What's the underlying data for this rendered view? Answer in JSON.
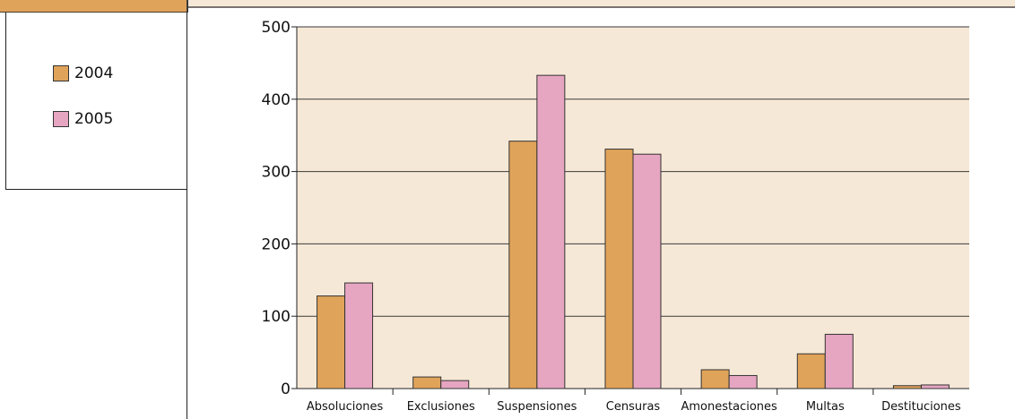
{
  "colors": {
    "plot_bg": "#f6e8d6",
    "series_2004": "#e0a35a",
    "series_2005": "#e6a6c2",
    "grid": "#3a3a3a",
    "header_accent": "#e0a35a"
  },
  "legend": {
    "items": [
      {
        "label": "2004",
        "color": "#e0a35a"
      },
      {
        "label": "2005",
        "color": "#e6a6c2"
      }
    ]
  },
  "chart_data": {
    "type": "bar",
    "title": "",
    "xlabel": "",
    "ylabel": "",
    "ylim": [
      0,
      500
    ],
    "yticks": [
      0,
      100,
      200,
      300,
      400,
      500
    ],
    "grid": true,
    "legend_position": "left",
    "categories": [
      "Absoluciones",
      "Exclusiones",
      "Suspensiones",
      "Censuras",
      "Amonestaciones",
      "Multas",
      "Destituciones"
    ],
    "series": [
      {
        "name": "2004",
        "color": "#e0a35a",
        "values": [
          128,
          16,
          342,
          331,
          26,
          48,
          4
        ]
      },
      {
        "name": "2005",
        "color": "#e6a6c2",
        "values": [
          146,
          11,
          433,
          324,
          18,
          75,
          5
        ]
      }
    ]
  }
}
